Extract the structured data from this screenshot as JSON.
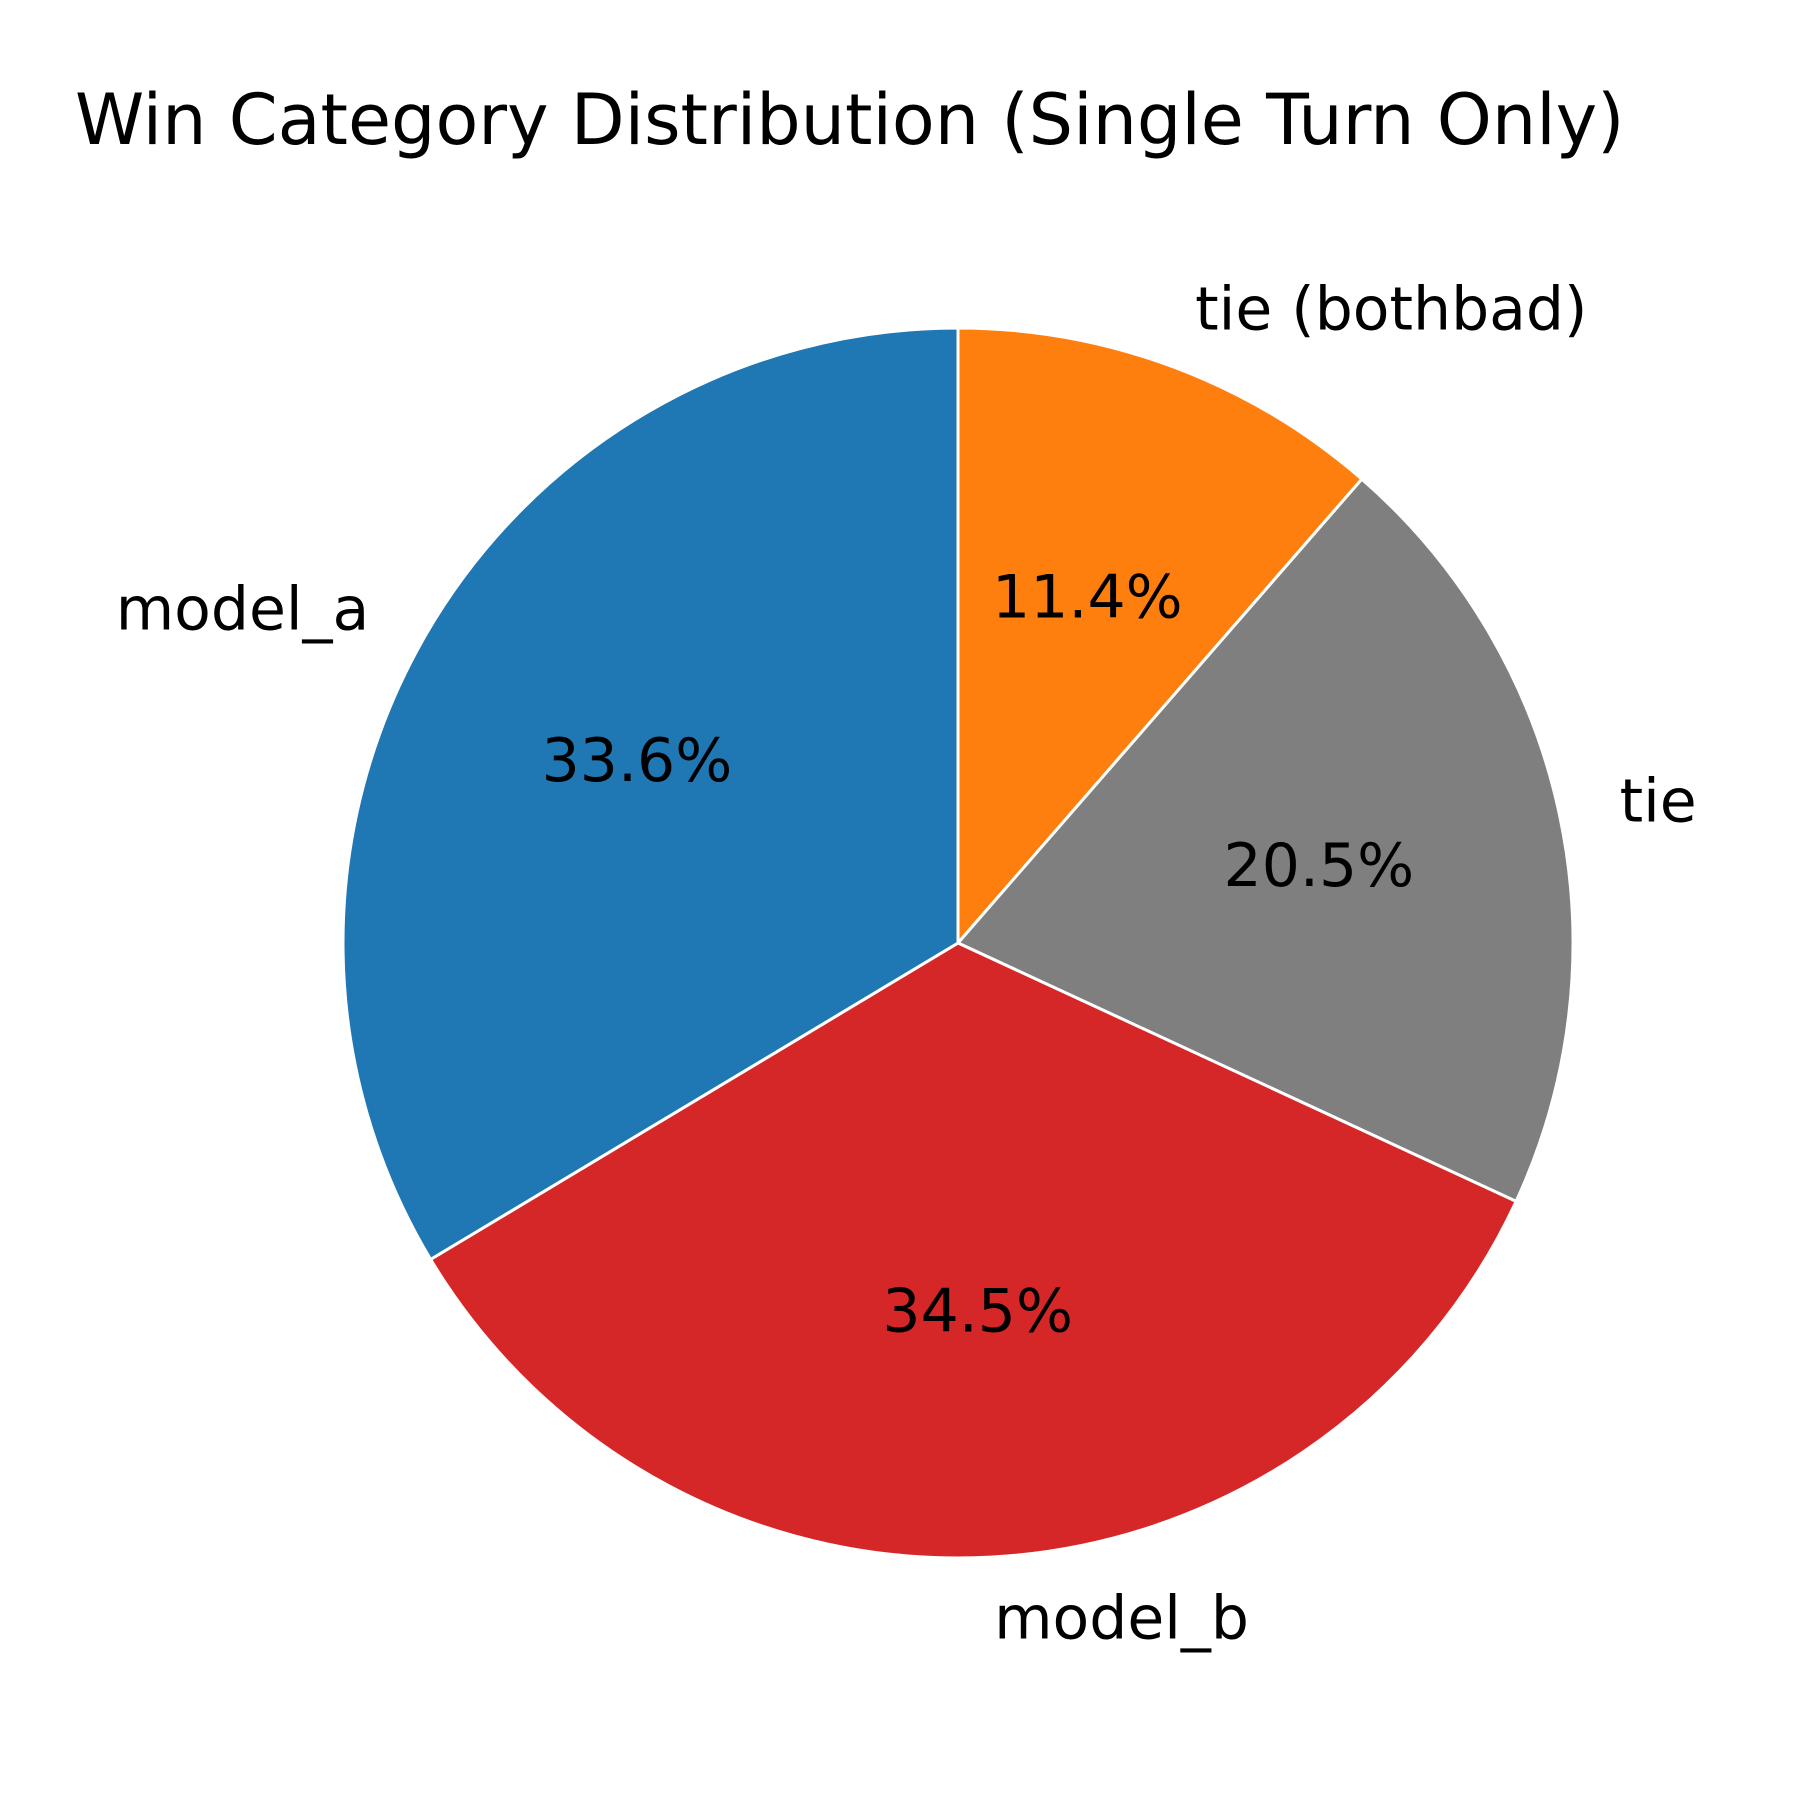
{
  "chart_data": {
    "type": "pie",
    "title": "Win Category Distribution (Single Turn Only)",
    "start_angle_deg": 90,
    "direction": "clockwise",
    "slices": [
      {
        "label": "tie (bothbad)",
        "value": 11.4,
        "pct_label": "11.4%",
        "color": "#ff7f0e"
      },
      {
        "label": "tie",
        "value": 20.5,
        "pct_label": "20.5%",
        "color": "#7f7f7f"
      },
      {
        "label": "model_b",
        "value": 34.5,
        "pct_label": "34.5%",
        "color": "#d62728"
      },
      {
        "label": "model_a",
        "value": 33.6,
        "pct_label": "33.6%",
        "color": "#1f77b4"
      }
    ],
    "edge_color": "#ffffff",
    "legend": "none"
  }
}
